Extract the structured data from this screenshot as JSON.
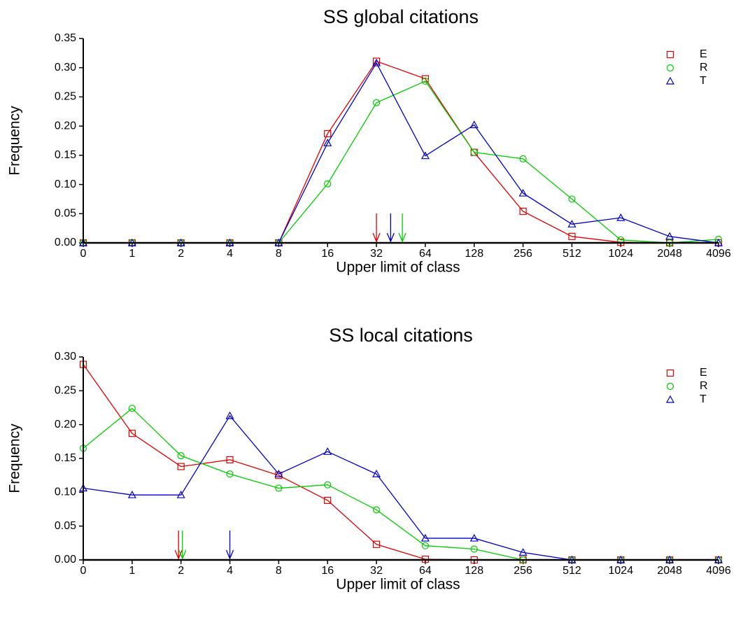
{
  "chart_data": [
    {
      "type": "line",
      "title": "SS global citations",
      "x_label": "Upper limit of class",
      "y_label": "Frequency",
      "categories": [
        "0",
        "1",
        "2",
        "4",
        "8",
        "16",
        "32",
        "64",
        "128",
        "256",
        "512",
        "1024",
        "2048",
        "4096"
      ],
      "ylim": [
        0,
        0.35
      ],
      "yticks": [
        {
          "value": 0,
          "label": "0.00"
        },
        {
          "value": 0.05,
          "label": "0.05"
        },
        {
          "value": 0.1,
          "label": "0.10"
        },
        {
          "value": 0.15,
          "label": "0.15"
        },
        {
          "value": 0.2,
          "label": "0.20"
        },
        {
          "value": 0.25,
          "label": "0.25"
        },
        {
          "value": 0.3,
          "label": "0.30"
        },
        {
          "value": 0.35,
          "label": "0.35"
        }
      ],
      "legend": "upper right",
      "series": [
        {
          "name": "E",
          "color": "#e00000",
          "marker": "square",
          "values": [
            0,
            0,
            0,
            0,
            0,
            0.187,
            0.311,
            0.281,
            0.155,
            0.054,
            0.011,
            0.001,
            0,
            0
          ],
          "arrow": 6.0
        },
        {
          "name": "R",
          "color": "#00cc00",
          "marker": "circle",
          "values": [
            0,
            0,
            0,
            0,
            0,
            0.101,
            0.24,
            0.277,
            0.155,
            0.144,
            0.075,
            0.005,
            0,
            0.006
          ],
          "arrow": 6.53
        },
        {
          "name": "T",
          "color": "#0000c8",
          "marker": "triangle",
          "values": [
            0,
            0,
            0,
            0,
            0,
            0.171,
            0.308,
            0.149,
            0.202,
            0.085,
            0.032,
            0.043,
            0.011,
            0
          ],
          "arrow": 6.29
        }
      ]
    },
    {
      "type": "line",
      "title": "SS local citations",
      "x_label": "Upper limit of class",
      "y_label": "Frequency",
      "categories": [
        "0",
        "1",
        "2",
        "4",
        "8",
        "16",
        "32",
        "64",
        "128",
        "256",
        "512",
        "1024",
        "2048",
        "4096"
      ],
      "ylim": [
        0,
        0.3
      ],
      "yticks": [
        {
          "value": 0,
          "label": "0.00"
        },
        {
          "value": 0.05,
          "label": "0.05"
        },
        {
          "value": 0.1,
          "label": "0.10"
        },
        {
          "value": 0.15,
          "label": "0.15"
        },
        {
          "value": 0.2,
          "label": "0.20"
        },
        {
          "value": 0.25,
          "label": "0.25"
        },
        {
          "value": 0.3,
          "label": "0.30"
        }
      ],
      "legend": "upper right",
      "series": [
        {
          "name": "E",
          "color": "#e00000",
          "marker": "square",
          "values": [
            0.289,
            0.187,
            0.138,
            0.148,
            0.125,
            0.088,
            0.023,
            0.001,
            0,
            0,
            0,
            0,
            0,
            0
          ],
          "arrow": 1.95
        },
        {
          "name": "R",
          "color": "#00cc00",
          "marker": "circle",
          "values": [
            0.165,
            0.224,
            0.154,
            0.127,
            0.106,
            0.111,
            0.074,
            0.021,
            0.016,
            0,
            0,
            0,
            0,
            0
          ],
          "arrow": 2.03
        },
        {
          "name": "T",
          "color": "#0000c8",
          "marker": "triangle",
          "values": [
            0.106,
            0.096,
            0.096,
            0.213,
            0.127,
            0.16,
            0.127,
            0.032,
            0.032,
            0.011,
            0,
            0,
            0,
            0
          ],
          "arrow": 3.0
        }
      ]
    }
  ]
}
